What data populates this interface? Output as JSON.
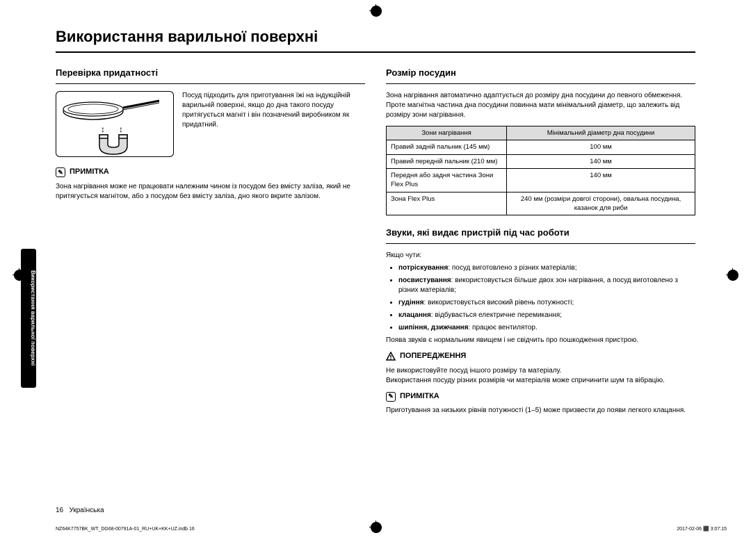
{
  "title": "Використання варильної поверхні",
  "sideTab": "Використання варильної поверхні",
  "left": {
    "h2": "Перевірка придатності",
    "panText": "Посуд підходить для приготування їжі на індукційній варильній поверхні, якщо до дна такого посуду притягується магніт і він позначений виробником як придатний.",
    "noteLabel": "ПРИМІТКА",
    "noteText": "Зона нагрівання може не працювати належним чином із посудом без вмісту заліза, який не притягується магнітом, або з посудом без вмісту заліза, дно якого вкрите залізом."
  },
  "right": {
    "h2a": "Розмір посудин",
    "introA": "Зона нагрівання автоматично адаптується до розміру дна посудини до певного обмеження. Проте магнітна частина дна посудини повинна мати мінімальний діаметр, що залежить від розміру зони нагрівання.",
    "table": {
      "headers": [
        "Зони нагрівання",
        "Мінімальний діаметр дна посудини"
      ],
      "rows": [
        [
          "Правий задній пальник (145 мм)",
          "100 мм"
        ],
        [
          "Правий передній пальник (210 мм)",
          "140 мм"
        ],
        [
          "Передня або задня частина Зони Flex Plus",
          "140 мм"
        ],
        [
          "Зона Flex Plus",
          "240 мм (розміри довгої сторони), овальна посудина, казанок для риби"
        ]
      ]
    },
    "h2b": "Звуки, які видає пристрій під час роботи",
    "soundsIntro": "Якщо чути:",
    "sounds": [
      {
        "b": "потріскування",
        "t": ": посуд виготовлено з різних матеріалів;"
      },
      {
        "b": "посвистування",
        "t": ": використовується більше двох зон нагрівання, а посуд виготовлено з різних матеріалів;"
      },
      {
        "b": "гудіння",
        "t": ": використовується високий рівень потужності;"
      },
      {
        "b": "клацання",
        "t": ": відбувається електричне перемикання;"
      },
      {
        "b": "шипіння, дзижчання",
        "t": ": працює вентилятор."
      }
    ],
    "soundsOutro": "Поява звуків є нормальним явищем і не свідчить про пошкодження пристрою.",
    "warnLabel": "ПОПЕРЕДЖЕННЯ",
    "warnText1": "Не використовуйте посуд іншого розміру та матеріалу.",
    "warnText2": "Використання посуду різних розмірів чи матеріалів може спричинити шум та вібрацію.",
    "noteLabel": "ПРИМІТКА",
    "noteText": "Приготування за низьких рівнів потужності (1–5) може призвести до появи легкого клацання."
  },
  "footer": {
    "page": "16",
    "lang": "Українська"
  },
  "footerFile": "NZ64K7757BK_WT_DG68-00791A-01_RU+UK+KK+UZ.indb   16",
  "footerDate": "2017-02-06   ⬛ 3:07:15"
}
